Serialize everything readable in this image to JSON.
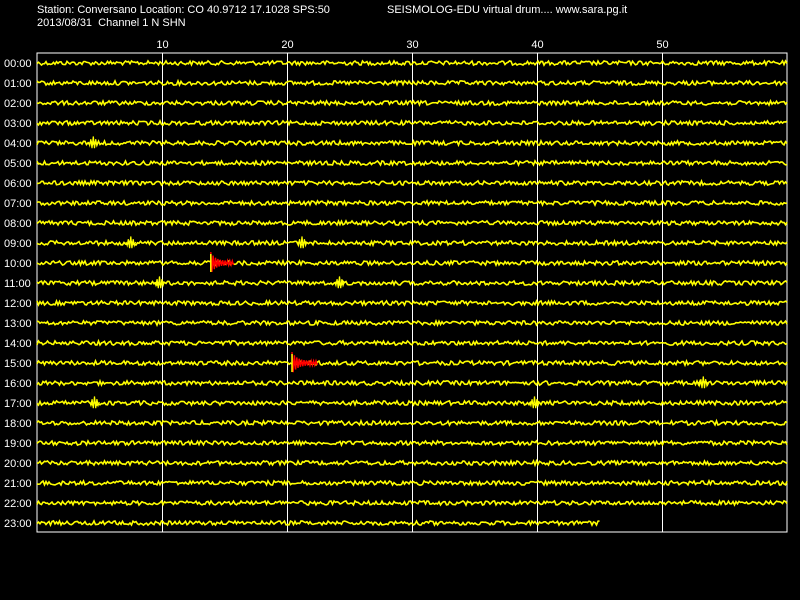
{
  "header": {
    "station_line": "Station: Conversano Location: CO 40.9712 17.1028 SPS:50",
    "date_line": "2013/08/31  Channel 1 N SHN",
    "credit_line": "SEISMOLOG-EDU virtual drum.... www.sara.pg.it"
  },
  "colors": {
    "background": "#000000",
    "trace": "#ffff00",
    "event": "#ff0000",
    "grid": "#ffffff",
    "text": "#ffffff"
  },
  "chart_data": {
    "type": "line",
    "subtype": "seismic-drum",
    "x_unit": "minutes",
    "xlim": [
      0,
      60
    ],
    "x_ticks": [
      10,
      20,
      30,
      40,
      50
    ],
    "grid": "vertical",
    "rows": [
      "00:00",
      "01:00",
      "02:00",
      "03:00",
      "04:00",
      "05:00",
      "06:00",
      "07:00",
      "08:00",
      "09:00",
      "10:00",
      "11:00",
      "12:00",
      "13:00",
      "14:00",
      "15:00",
      "16:00",
      "17:00",
      "18:00",
      "19:00",
      "20:00",
      "21:00",
      "22:00",
      "23:00"
    ],
    "last_row_end_minute": 45,
    "events": [
      {
        "row": "10:00",
        "start_minute": 13.9,
        "end_minute": 15.8
      },
      {
        "row": "15:00",
        "start_minute": 20.4,
        "end_minute": 22.5
      }
    ],
    "spikes": [
      {
        "row": "04:00",
        "minute": 4.5
      },
      {
        "row": "09:00",
        "minute": 7.5
      },
      {
        "row": "09:00",
        "minute": 21.2
      },
      {
        "row": "11:00",
        "minute": 9.8
      },
      {
        "row": "11:00",
        "minute": 24.2
      },
      {
        "row": "16:00",
        "minute": 53.3
      },
      {
        "row": "17:00",
        "minute": 4.6
      },
      {
        "row": "17:00",
        "minute": 39.8
      }
    ]
  }
}
